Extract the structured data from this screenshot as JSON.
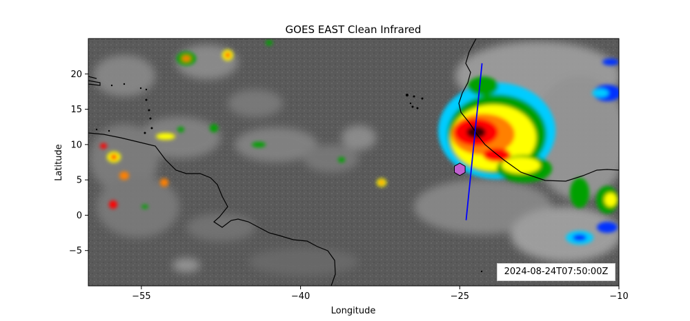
{
  "figure": {
    "title": "GOES EAST Clean Infrared",
    "timestamp": "2024-08-24T07:50:00Z"
  },
  "axes": {
    "xlabel": "Longitude",
    "ylabel": "Latitude",
    "xlim": [
      -60,
      -10
    ],
    "ylim": [
      -10,
      25
    ],
    "xticks": [
      -55,
      -40,
      -25,
      -10
    ],
    "yticks": [
      20,
      15,
      10,
      5,
      0,
      -5
    ],
    "xtick_labels": [
      "−55",
      "−40",
      "−25",
      "−10"
    ],
    "ytick_labels": [
      "20",
      "15",
      "10",
      "5",
      "0",
      "−5"
    ]
  },
  "map_overlays": {
    "transect_line": {
      "color": "#0000ff",
      "start": [
        -24.4,
        -0.7
      ],
      "end": [
        -22.9,
        21.5
      ]
    },
    "marker": {
      "shape": "hexagon",
      "color": "#c060d0",
      "lon": -25.0,
      "lat": 6.5
    }
  },
  "colors": {
    "background": "#5e5e5e",
    "coast": "#000000",
    "cold_cloud_scale": [
      "#d9d9d9",
      "#00ccff",
      "#0030ff",
      "#00a000",
      "#ffff00",
      "#ff8000",
      "#ff0000",
      "#400000"
    ]
  }
}
